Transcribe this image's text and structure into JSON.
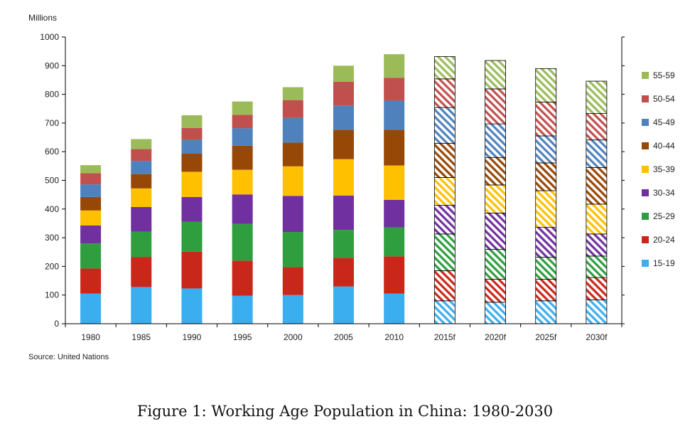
{
  "caption": "Figure 1: Working Age Population in China: 1980-2030",
  "chart_data": {
    "type": "bar",
    "stacked": true,
    "ylabel": "Millions",
    "ylim": [
      0,
      1000
    ],
    "yticks": [
      0,
      100,
      200,
      300,
      400,
      500,
      600,
      700,
      800,
      900,
      1000
    ],
    "source": "Source: United Nations",
    "categories": [
      "1980",
      "1985",
      "1990",
      "1995",
      "2000",
      "2005",
      "2010",
      "2015f",
      "2020f",
      "2025f",
      "2030f"
    ],
    "forecast_from_index": 7,
    "legend_position": "right",
    "series": [
      {
        "name": "15-19",
        "color": "#3BAEEF",
        "values": [
          105,
          128,
          123,
          98,
          100,
          130,
          105,
          80,
          75,
          80,
          83
        ]
      },
      {
        "name": "20-24",
        "color": "#C9271A",
        "values": [
          88,
          105,
          128,
          122,
          98,
          100,
          130,
          105,
          80,
          75,
          78
        ]
      },
      {
        "name": "25-29",
        "color": "#2E9E3E",
        "values": [
          87,
          88,
          105,
          128,
          122,
          97,
          101,
          128,
          104,
          77,
          75
        ]
      },
      {
        "name": "30-34",
        "color": "#7030A0",
        "values": [
          63,
          86,
          86,
          103,
          126,
          120,
          96,
          100,
          127,
          104,
          77
        ]
      },
      {
        "name": "35-39",
        "color": "#FFC000",
        "values": [
          52,
          65,
          88,
          86,
          103,
          127,
          120,
          97,
          98,
          128,
          104
        ]
      },
      {
        "name": "40-44",
        "color": "#974706",
        "values": [
          47,
          50,
          63,
          84,
          83,
          102,
          124,
          119,
          96,
          97,
          128
        ]
      },
      {
        "name": "45-49",
        "color": "#4F81BD",
        "values": [
          44,
          46,
          48,
          61,
          86,
          85,
          102,
          125,
          117,
          94,
          96
        ]
      },
      {
        "name": "50-54",
        "color": "#C0504D",
        "values": [
          39,
          41,
          42,
          47,
          62,
          83,
          80,
          100,
          122,
          118,
          92
        ]
      },
      {
        "name": "55-59",
        "color": "#9BBB59",
        "values": [
          28,
          35,
          44,
          46,
          45,
          56,
          82,
          78,
          99,
          117,
          113
        ]
      }
    ]
  }
}
